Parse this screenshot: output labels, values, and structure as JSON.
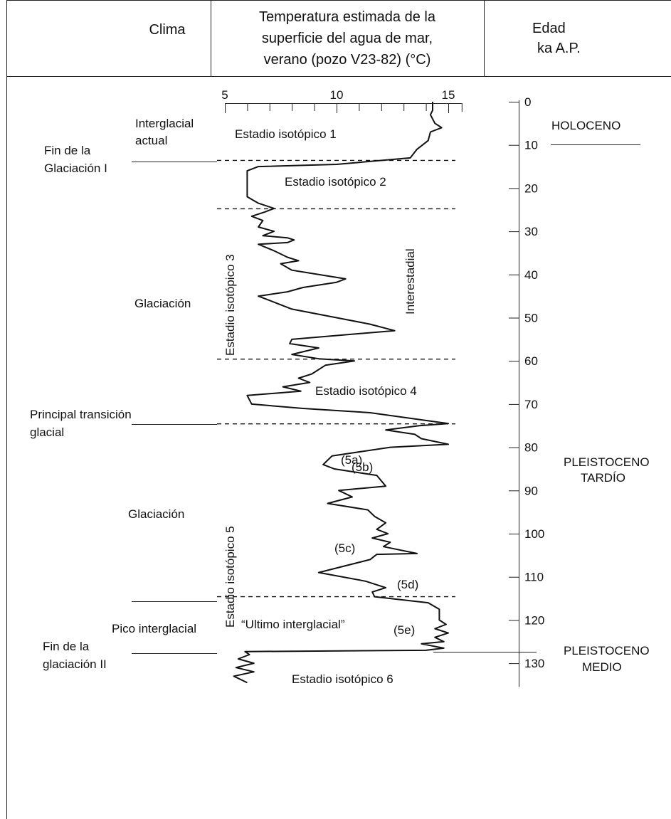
{
  "header": {
    "clima": "Clima",
    "temperatura": [
      "Temperatura estimada de la",
      "superficie del agua de mar,",
      "verano (pozo V23-82) (°C)"
    ],
    "edad": [
      "Edad",
      "ka A.P."
    ]
  },
  "chart_data": {
    "type": "line",
    "orientation": "vertical-age-axis",
    "x_axis": {
      "label": "Temperatura estimada de la superficie del agua de mar, verano (pozo V23-82) (°C)",
      "ticks": [
        5,
        10,
        15
      ],
      "range": [
        5,
        15.6
      ],
      "minor_step": 1
    },
    "y_axis": {
      "label": "Edad ka A.P.",
      "ticks": [
        0,
        10,
        20,
        30,
        40,
        50,
        60,
        70,
        80,
        90,
        100,
        110,
        120,
        130
      ],
      "range": [
        0,
        135
      ]
    },
    "series": [
      {
        "points": [
          [
            14.3,
            0
          ],
          [
            14.3,
            2
          ],
          [
            14.2,
            3
          ],
          [
            14.4,
            5
          ],
          [
            14.7,
            6
          ],
          [
            14.2,
            7
          ],
          [
            14.1,
            9
          ],
          [
            13.6,
            11
          ],
          [
            13.3,
            13
          ],
          [
            10,
            14.5
          ],
          [
            6.5,
            15
          ],
          [
            6.0,
            16
          ],
          [
            6.0,
            22
          ],
          [
            6.5,
            23.5
          ],
          [
            7.2,
            24.7
          ],
          [
            6.8,
            25.5
          ],
          [
            6.2,
            26.5
          ],
          [
            6.7,
            27.5
          ],
          [
            6.5,
            29
          ],
          [
            7.2,
            30
          ],
          [
            6.7,
            31
          ],
          [
            7.8,
            31.5
          ],
          [
            8.1,
            32
          ],
          [
            7.8,
            32.6
          ],
          [
            6.5,
            33
          ],
          [
            7.2,
            34.5
          ],
          [
            7.8,
            36
          ],
          [
            8.3,
            36.8
          ],
          [
            7.5,
            37.5
          ],
          [
            8.0,
            39
          ],
          [
            10.4,
            41
          ],
          [
            10.0,
            41.8
          ],
          [
            8.5,
            43
          ],
          [
            7.8,
            44
          ],
          [
            6.5,
            45
          ],
          [
            7.0,
            46
          ],
          [
            8.0,
            48
          ],
          [
            10.0,
            50
          ],
          [
            11.5,
            51.5
          ],
          [
            12.6,
            53
          ],
          [
            8.0,
            55
          ],
          [
            7.9,
            56
          ],
          [
            9.2,
            57
          ],
          [
            8.0,
            58.5
          ],
          [
            9.2,
            59.5
          ],
          [
            10.8,
            60
          ],
          [
            9.5,
            61
          ],
          [
            8.9,
            63
          ],
          [
            8.3,
            64
          ],
          [
            8.8,
            65
          ],
          [
            7.6,
            66
          ],
          [
            8.4,
            67
          ],
          [
            6.0,
            68
          ],
          [
            6.2,
            70
          ],
          [
            8.5,
            71
          ],
          [
            11.5,
            72
          ],
          [
            15.0,
            74.5
          ],
          [
            13.7,
            75
          ],
          [
            12.2,
            76
          ],
          [
            13.5,
            77
          ],
          [
            13.8,
            78
          ],
          [
            15.0,
            79.3
          ],
          [
            12.4,
            80
          ],
          [
            9.8,
            82
          ],
          [
            9.4,
            84
          ],
          [
            9.9,
            85
          ],
          [
            11.8,
            86.5
          ],
          [
            12.2,
            89
          ],
          [
            10.1,
            90
          ],
          [
            10.7,
            91.5
          ],
          [
            9.6,
            93
          ],
          [
            11.4,
            94.5
          ],
          [
            11.7,
            96
          ],
          [
            12.2,
            97.5
          ],
          [
            11.8,
            99
          ],
          [
            12.3,
            100
          ],
          [
            11.6,
            101
          ],
          [
            12.4,
            102
          ],
          [
            12.1,
            103
          ],
          [
            13.6,
            104.6
          ],
          [
            11.8,
            104.8
          ],
          [
            11.5,
            106
          ],
          [
            9.2,
            109
          ],
          [
            11.3,
            111
          ],
          [
            12.2,
            112.5
          ],
          [
            11.6,
            113.5
          ],
          [
            11.7,
            114.6
          ],
          [
            14.1,
            116
          ],
          [
            14.6,
            117.5
          ],
          [
            14.6,
            120
          ],
          [
            14.9,
            121
          ],
          [
            14.4,
            122
          ],
          [
            15.0,
            123
          ],
          [
            14.4,
            124
          ],
          [
            14.8,
            125
          ],
          [
            13.8,
            125.5
          ],
          [
            14.8,
            126.5
          ],
          [
            14.0,
            127
          ],
          [
            5.9,
            127.3
          ],
          [
            6.1,
            128
          ],
          [
            5.6,
            129
          ],
          [
            6.3,
            130
          ],
          [
            5.5,
            131
          ],
          [
            6.3,
            132
          ],
          [
            5.4,
            133
          ],
          [
            6.0,
            134.5
          ]
        ]
      }
    ],
    "isotope_boundaries": [
      13.5,
      24.7,
      59.5,
      74.5,
      114.5
    ],
    "stage_labels": [
      "Estadio isotópico 1",
      "Estadio isotópico 2",
      "Estadio isotópico 3",
      "Estadio isotópico 4",
      "Estadio isotópico 5",
      "Estadio isotópico 6"
    ],
    "substage_labels": [
      "(5a)",
      "(5b)",
      "(5c)",
      "(5d)",
      "(5e)"
    ],
    "annotations": [
      "Interestadial",
      "“Ultimo interglacial”"
    ],
    "climate_labels": [
      [
        "Interglacial",
        "actual"
      ],
      [
        "Fin de la",
        "Glaciación I"
      ],
      [
        "Glaciación"
      ],
      [
        "Principal transición",
        "glacial"
      ],
      [
        "Glaciación"
      ],
      [
        "Pico interglacial"
      ],
      [
        "Fin de la",
        "glaciación II"
      ]
    ],
    "epochs": [
      [
        "HOLOCENO"
      ],
      [
        "PLEISTOCENO",
        "TARDÍO"
      ],
      [
        "PLEISTOCENO",
        "MEDIO"
      ]
    ],
    "grid": false
  }
}
